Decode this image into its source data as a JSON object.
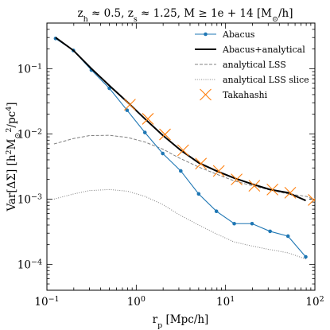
{
  "chart_data": {
    "type": "line",
    "title": "z_h ≈ 0.5, z_s ≈ 1.25, M ≥ 1e+14 [M_⊙/h]",
    "xlabel": "r_p [Mpc/h]",
    "ylabel": "Var[ΔΣ] [h²M_⊙²/pc⁴]",
    "xscale": "log",
    "yscale": "log",
    "xlim": [
      0.1,
      100
    ],
    "ylim": [
      4e-05,
      0.5
    ],
    "x_ticks": [
      {
        "value": 0.1,
        "base": "10",
        "exp": "−1"
      },
      {
        "value": 1,
        "base": "10",
        "exp": "0"
      },
      {
        "value": 10,
        "base": "10",
        "exp": "1"
      },
      {
        "value": 100,
        "base": "10",
        "exp": "2"
      }
    ],
    "y_ticks": [
      {
        "value": 0.0001,
        "base": "10",
        "exp": "−4"
      },
      {
        "value": 0.001,
        "base": "10",
        "exp": "−3"
      },
      {
        "value": 0.01,
        "base": "10",
        "exp": "−2"
      },
      {
        "value": 0.1,
        "base": "10",
        "exp": "−1"
      }
    ],
    "legend_position": "top-right",
    "series": [
      {
        "name": "Abacus",
        "color": "#1f77b4",
        "style": "line-marker",
        "x": [
          0.125,
          0.198,
          0.315,
          0.5,
          0.79,
          1.25,
          1.98,
          3.15,
          5.0,
          7.9,
          12.5,
          19.8,
          31.5,
          50.0,
          79.0
        ],
        "y": [
          0.29,
          0.19,
          0.095,
          0.05,
          0.023,
          0.0105,
          0.005,
          0.0027,
          0.0012,
          0.00065,
          0.00042,
          0.00042,
          0.00032,
          0.00027,
          0.00013
        ]
      },
      {
        "name": "Abacus+analytical",
        "color": "#000000",
        "style": "thick-line",
        "x": [
          0.125,
          0.198,
          0.315,
          0.5,
          0.79,
          1.25,
          1.98,
          3.15,
          5.0,
          7.9,
          12.5,
          19.8,
          31.5,
          50.0,
          79.0
        ],
        "y": [
          0.3,
          0.19,
          0.1,
          0.055,
          0.031,
          0.017,
          0.0095,
          0.0056,
          0.0036,
          0.0027,
          0.0021,
          0.0017,
          0.0014,
          0.00125,
          0.00095
        ]
      },
      {
        "name": "analytical LSS",
        "color": "#808080",
        "style": "dashed",
        "x": [
          0.12,
          0.2,
          0.3,
          0.5,
          0.8,
          1.25,
          2.0,
          3.0,
          5.0,
          8.0,
          12.5,
          20.0,
          30.0,
          50.0,
          80.0,
          95.0
        ],
        "y": [
          0.007,
          0.0085,
          0.0094,
          0.0095,
          0.0088,
          0.0075,
          0.0058,
          0.0043,
          0.0031,
          0.0024,
          0.0019,
          0.0016,
          0.0014,
          0.0012,
          0.0011,
          0.001
        ]
      },
      {
        "name": "analytical LSS slice",
        "color": "#808080",
        "style": "dotted",
        "x": [
          0.12,
          0.2,
          0.3,
          0.5,
          0.8,
          1.25,
          2.0,
          3.0,
          5.0,
          8.0,
          12.5,
          20.0,
          30.0,
          50.0,
          80.0
        ],
        "y": [
          0.001,
          0.0012,
          0.00135,
          0.0014,
          0.00132,
          0.0011,
          0.00082,
          0.00058,
          0.0004,
          0.00029,
          0.00022,
          0.00019,
          0.00017,
          0.00015,
          0.00012
        ]
      },
      {
        "name": "Takahashi",
        "color": "#ff7f0e",
        "style": "x-marker",
        "x": [
          0.85,
          1.35,
          2.1,
          3.35,
          5.3,
          8.4,
          13.3,
          21.0,
          33.5,
          53.0,
          97.0
        ],
        "y": [
          0.028,
          0.017,
          0.0098,
          0.0056,
          0.0035,
          0.0027,
          0.002,
          0.0016,
          0.0014,
          0.00125,
          0.00097
        ]
      }
    ]
  }
}
